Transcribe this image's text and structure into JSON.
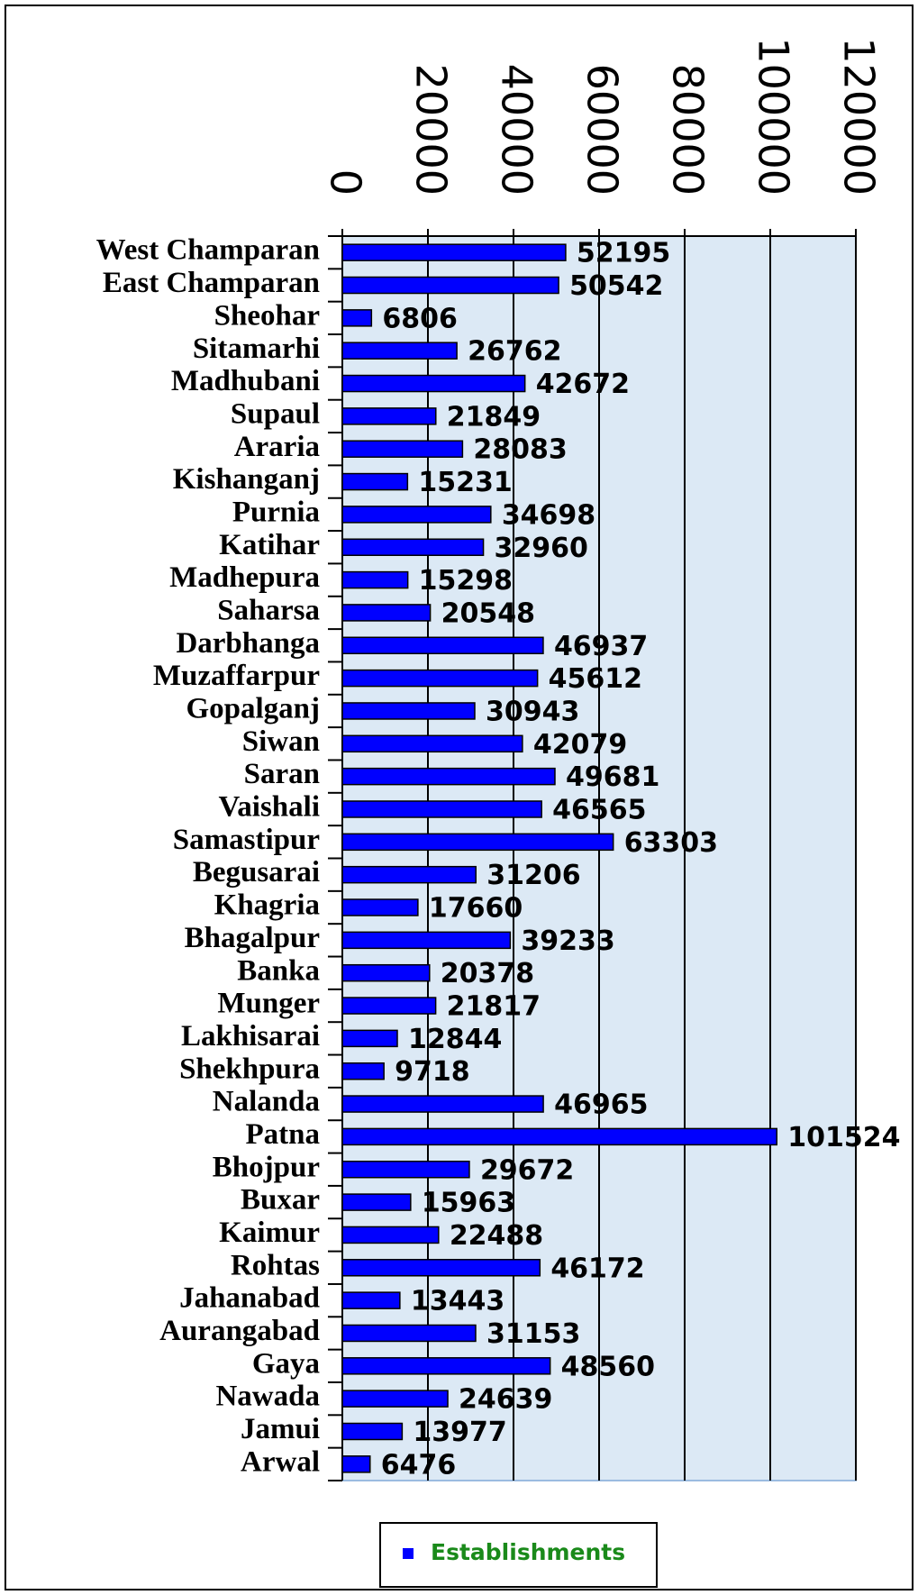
{
  "chart_data": {
    "type": "bar",
    "orientation": "horizontal",
    "categories": [
      "West Champaran",
      "East Champaran",
      "Sheohar",
      "Sitamarhi",
      "Madhubani",
      "Supaul",
      "Araria",
      "Kishanganj",
      "Purnia",
      "Katihar",
      "Madhepura",
      "Saharsa",
      "Darbhanga",
      "Muzaffarpur",
      "Gopalganj",
      "Siwan",
      "Saran",
      "Vaishali",
      "Samastipur",
      "Begusarai",
      "Khagria",
      "Bhagalpur",
      "Banka",
      "Munger",
      "Lakhisarai",
      "Shekhpura",
      "Nalanda",
      "Patna",
      "Bhojpur",
      "Buxar",
      "Kaimur",
      "Rohtas",
      "Jahanabad",
      "Aurangabad",
      "Gaya",
      "Nawada",
      "Jamui",
      "Arwal"
    ],
    "series": [
      {
        "name": "Establishments",
        "color": "#0000ff",
        "values": [
          52195,
          50542,
          6806,
          26762,
          42672,
          21849,
          28083,
          15231,
          34698,
          32960,
          15298,
          20548,
          46937,
          45612,
          30943,
          42079,
          49681,
          46565,
          63303,
          31206,
          17660,
          39233,
          20378,
          21817,
          12844,
          9718,
          46965,
          101524,
          29672,
          15963,
          22488,
          46172,
          13443,
          31153,
          48560,
          24639,
          13977,
          6476
        ]
      }
    ],
    "xlim": [
      0,
      120000
    ],
    "xticks": [
      0,
      20000,
      40000,
      60000,
      80000,
      100000,
      120000
    ],
    "grid": true,
    "legend": "bottom"
  }
}
